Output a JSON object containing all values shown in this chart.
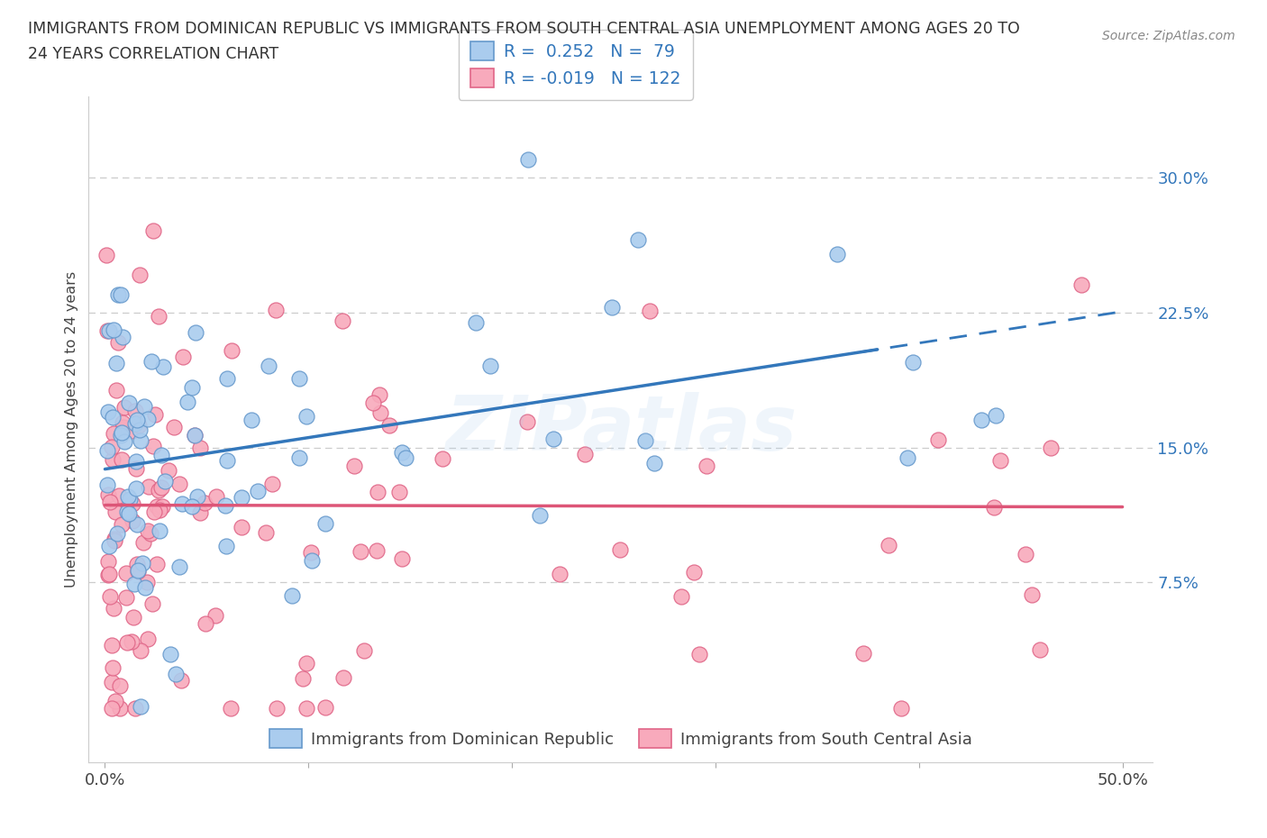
{
  "title_line1": "IMMIGRANTS FROM DOMINICAN REPUBLIC VS IMMIGRANTS FROM SOUTH CENTRAL ASIA UNEMPLOYMENT AMONG AGES 20 TO",
  "title_line2": "24 YEARS CORRELATION CHART",
  "source": "Source: ZipAtlas.com",
  "ylabel": "Unemployment Among Ages 20 to 24 years",
  "series1_label": "Immigrants from Dominican Republic",
  "series2_label": "Immigrants from South Central Asia",
  "series1_color": "#aaccee",
  "series1_edge_color": "#6699cc",
  "series2_color": "#f8aabc",
  "series2_edge_color": "#e06688",
  "series1_R": 0.252,
  "series1_N": 79,
  "series2_R": -0.019,
  "series2_N": 122,
  "trend1_color": "#3377bb",
  "trend2_color": "#dd5577",
  "watermark_text": "ZIPatlas",
  "watermark_color": "#aaccee",
  "background_color": "#ffffff",
  "trend1_intercept": 0.138,
  "trend1_slope": 0.175,
  "trend2_intercept": 0.118,
  "trend2_slope": -0.002
}
